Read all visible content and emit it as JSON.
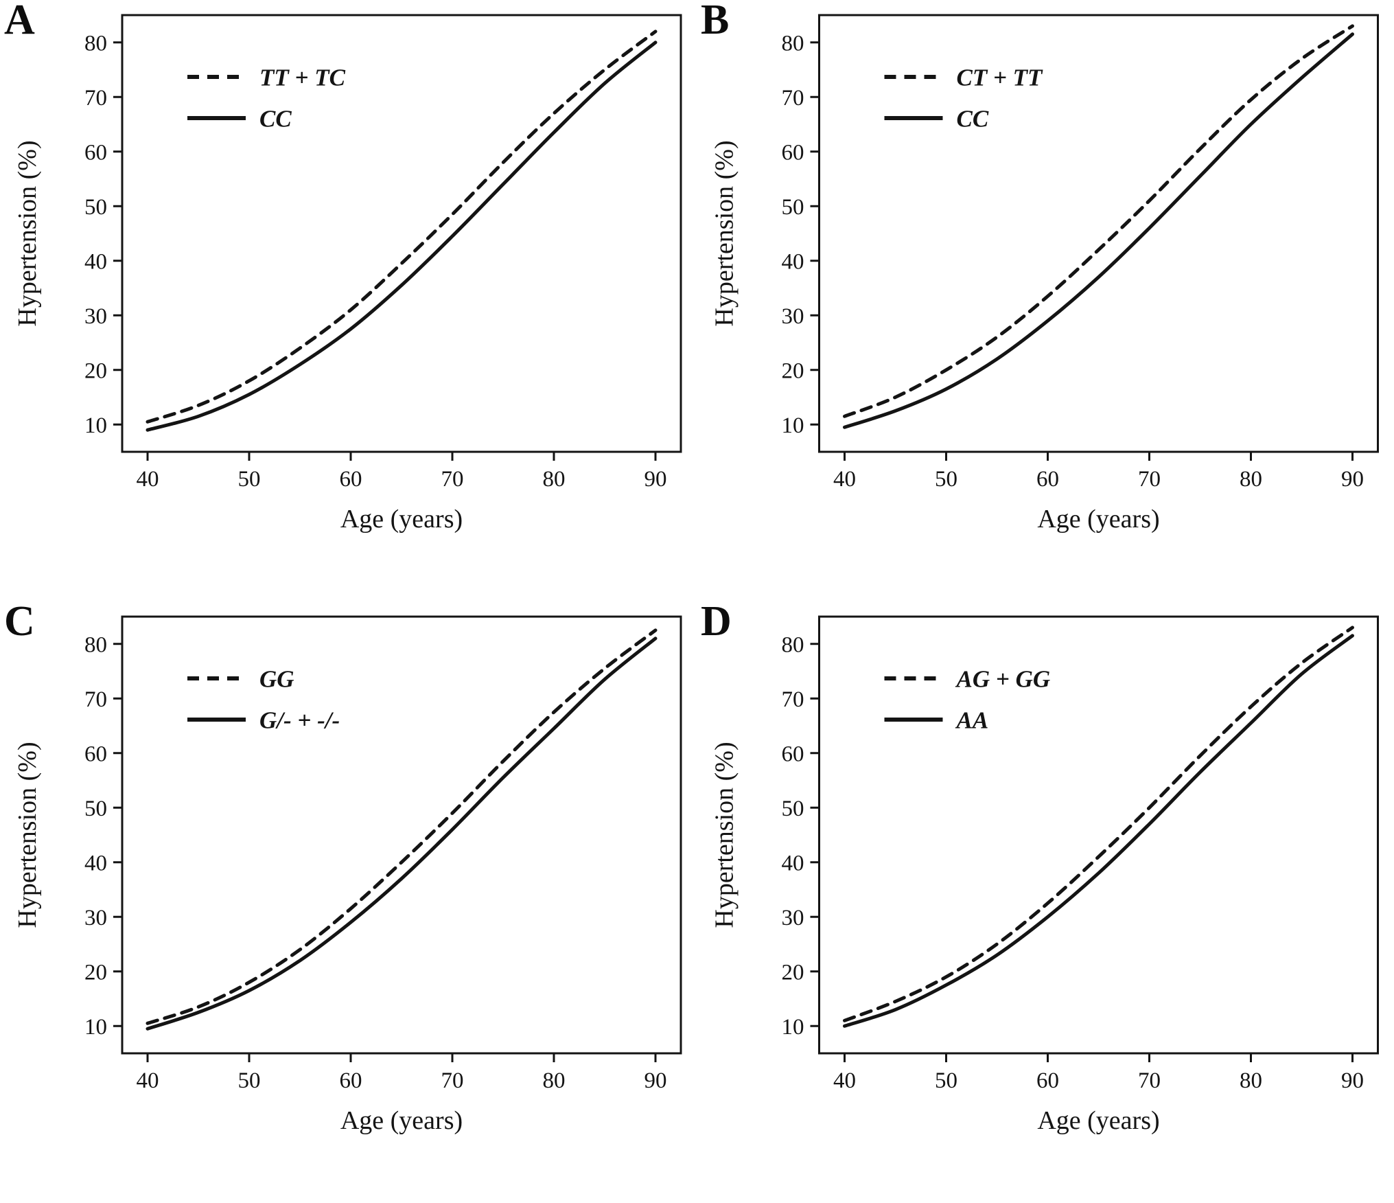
{
  "figure": {
    "background_color": "#ffffff",
    "line_color": "#141414"
  },
  "chart_data": [
    {
      "type": "line",
      "panel": "A",
      "xlabel": "Age (years)",
      "ylabel": "Hypertension (%)",
      "xlim": [
        37.5,
        92.5
      ],
      "ylim": [
        5,
        85
      ],
      "xticks": [
        40,
        50,
        60,
        70,
        80,
        90
      ],
      "yticks": [
        10,
        20,
        30,
        40,
        50,
        60,
        70,
        80
      ],
      "grid": false,
      "legend_position": "upper-left",
      "x": [
        40,
        45,
        50,
        55,
        60,
        65,
        70,
        75,
        80,
        85,
        90
      ],
      "series": [
        {
          "name": "TT + TC",
          "style": "dashed",
          "values": [
            10.5,
            13.5,
            18,
            24,
            31,
            39.5,
            48.5,
            58,
            67,
            75,
            82
          ]
        },
        {
          "name": "CC",
          "style": "solid",
          "values": [
            9,
            11.5,
            15.5,
            21,
            27.5,
            35.5,
            44.5,
            54,
            63.5,
            72.5,
            80
          ]
        }
      ]
    },
    {
      "type": "line",
      "panel": "B",
      "xlabel": "Age (years)",
      "ylabel": "Hypertension (%)",
      "xlim": [
        37.5,
        92.5
      ],
      "ylim": [
        5,
        85
      ],
      "xticks": [
        40,
        50,
        60,
        70,
        80,
        90
      ],
      "yticks": [
        10,
        20,
        30,
        40,
        50,
        60,
        70,
        80
      ],
      "grid": false,
      "legend_position": "upper-left",
      "x": [
        40,
        45,
        50,
        55,
        60,
        65,
        70,
        75,
        80,
        85,
        90
      ],
      "series": [
        {
          "name": "CT + TT",
          "style": "dashed",
          "values": [
            11.5,
            15,
            20,
            26,
            33.5,
            42,
            51,
            60.5,
            69.5,
            77,
            83
          ]
        },
        {
          "name": "CC",
          "style": "solid",
          "values": [
            9.5,
            12.5,
            16.5,
            22,
            29,
            37,
            46,
            55.5,
            65,
            73.5,
            81.5
          ]
        }
      ]
    },
    {
      "type": "line",
      "panel": "C",
      "xlabel": "Age (years)",
      "ylabel": "Hypertension (%)",
      "xlim": [
        37.5,
        92.5
      ],
      "ylim": [
        5,
        85
      ],
      "xticks": [
        40,
        50,
        60,
        70,
        80,
        90
      ],
      "yticks": [
        10,
        20,
        30,
        40,
        50,
        60,
        70,
        80
      ],
      "grid": false,
      "legend_position": "upper-left",
      "x": [
        40,
        45,
        50,
        55,
        60,
        65,
        70,
        75,
        80,
        85,
        90
      ],
      "series": [
        {
          "name": "GG",
          "style": "dashed",
          "values": [
            10.5,
            13.5,
            18,
            24,
            31.5,
            40,
            49,
            58.5,
            67.5,
            75.5,
            82.5
          ]
        },
        {
          "name": "G/- + -/-",
          "style": "solid",
          "values": [
            9.5,
            12.5,
            16.5,
            22,
            29,
            37,
            46,
            55.5,
            64.5,
            73.5,
            81
          ]
        }
      ]
    },
    {
      "type": "line",
      "panel": "D",
      "xlabel": "Age (years)",
      "ylabel": "Hypertension (%)",
      "xlim": [
        37.5,
        92.5
      ],
      "ylim": [
        5,
        85
      ],
      "xticks": [
        40,
        50,
        60,
        70,
        80,
        90
      ],
      "yticks": [
        10,
        20,
        30,
        40,
        50,
        60,
        70,
        80
      ],
      "grid": false,
      "legend_position": "upper-left",
      "x": [
        40,
        45,
        50,
        55,
        60,
        65,
        70,
        75,
        80,
        85,
        90
      ],
      "series": [
        {
          "name": "AG + GG",
          "style": "dashed",
          "values": [
            11,
            14.5,
            19,
            25,
            32.5,
            41,
            50,
            59.5,
            68.5,
            76.5,
            83
          ]
        },
        {
          "name": "AA",
          "style": "solid",
          "values": [
            10,
            13,
            17.5,
            23,
            30,
            38,
            47,
            56.5,
            65.5,
            74.5,
            81.5
          ]
        }
      ]
    }
  ]
}
